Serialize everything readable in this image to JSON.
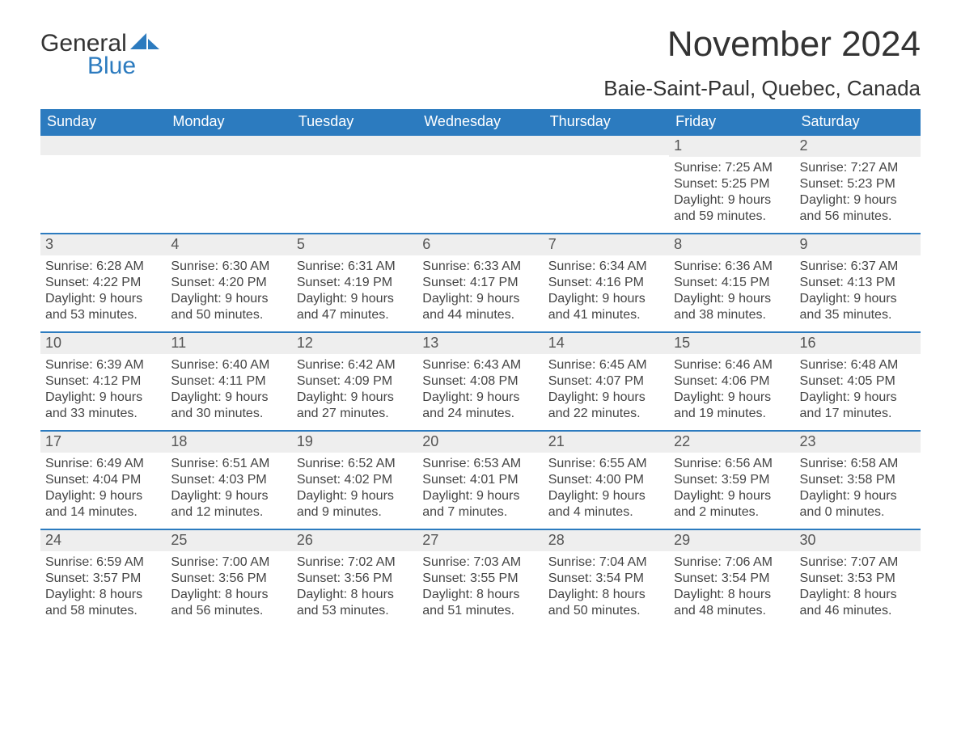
{
  "logo": {
    "text_general": "General",
    "text_blue": "Blue",
    "sail_color": "#2c7bbf"
  },
  "title": "November 2024",
  "location": "Baie-Saint-Paul, Quebec, Canada",
  "colors": {
    "header_bg": "#2c7bbf",
    "header_text": "#ffffff",
    "day_bar_bg": "#eeeeee",
    "day_bar_border": "#2c7bbf",
    "body_bg": "#ffffff",
    "text": "#333333"
  },
  "typography": {
    "title_fontsize": 44,
    "location_fontsize": 26,
    "weekday_fontsize": 18,
    "daynum_fontsize": 18,
    "body_fontsize": 16,
    "logo_fontsize": 30
  },
  "weekdays": [
    "Sunday",
    "Monday",
    "Tuesday",
    "Wednesday",
    "Thursday",
    "Friday",
    "Saturday"
  ],
  "weeks": [
    [
      {
        "empty": true
      },
      {
        "empty": true
      },
      {
        "empty": true
      },
      {
        "empty": true
      },
      {
        "empty": true
      },
      {
        "day": "1",
        "sunrise": "Sunrise: 7:25 AM",
        "sunset": "Sunset: 5:25 PM",
        "daylight1": "Daylight: 9 hours",
        "daylight2": "and 59 minutes."
      },
      {
        "day": "2",
        "sunrise": "Sunrise: 7:27 AM",
        "sunset": "Sunset: 5:23 PM",
        "daylight1": "Daylight: 9 hours",
        "daylight2": "and 56 minutes."
      }
    ],
    [
      {
        "day": "3",
        "sunrise": "Sunrise: 6:28 AM",
        "sunset": "Sunset: 4:22 PM",
        "daylight1": "Daylight: 9 hours",
        "daylight2": "and 53 minutes."
      },
      {
        "day": "4",
        "sunrise": "Sunrise: 6:30 AM",
        "sunset": "Sunset: 4:20 PM",
        "daylight1": "Daylight: 9 hours",
        "daylight2": "and 50 minutes."
      },
      {
        "day": "5",
        "sunrise": "Sunrise: 6:31 AM",
        "sunset": "Sunset: 4:19 PM",
        "daylight1": "Daylight: 9 hours",
        "daylight2": "and 47 minutes."
      },
      {
        "day": "6",
        "sunrise": "Sunrise: 6:33 AM",
        "sunset": "Sunset: 4:17 PM",
        "daylight1": "Daylight: 9 hours",
        "daylight2": "and 44 minutes."
      },
      {
        "day": "7",
        "sunrise": "Sunrise: 6:34 AM",
        "sunset": "Sunset: 4:16 PM",
        "daylight1": "Daylight: 9 hours",
        "daylight2": "and 41 minutes."
      },
      {
        "day": "8",
        "sunrise": "Sunrise: 6:36 AM",
        "sunset": "Sunset: 4:15 PM",
        "daylight1": "Daylight: 9 hours",
        "daylight2": "and 38 minutes."
      },
      {
        "day": "9",
        "sunrise": "Sunrise: 6:37 AM",
        "sunset": "Sunset: 4:13 PM",
        "daylight1": "Daylight: 9 hours",
        "daylight2": "and 35 minutes."
      }
    ],
    [
      {
        "day": "10",
        "sunrise": "Sunrise: 6:39 AM",
        "sunset": "Sunset: 4:12 PM",
        "daylight1": "Daylight: 9 hours",
        "daylight2": "and 33 minutes."
      },
      {
        "day": "11",
        "sunrise": "Sunrise: 6:40 AM",
        "sunset": "Sunset: 4:11 PM",
        "daylight1": "Daylight: 9 hours",
        "daylight2": "and 30 minutes."
      },
      {
        "day": "12",
        "sunrise": "Sunrise: 6:42 AM",
        "sunset": "Sunset: 4:09 PM",
        "daylight1": "Daylight: 9 hours",
        "daylight2": "and 27 minutes."
      },
      {
        "day": "13",
        "sunrise": "Sunrise: 6:43 AM",
        "sunset": "Sunset: 4:08 PM",
        "daylight1": "Daylight: 9 hours",
        "daylight2": "and 24 minutes."
      },
      {
        "day": "14",
        "sunrise": "Sunrise: 6:45 AM",
        "sunset": "Sunset: 4:07 PM",
        "daylight1": "Daylight: 9 hours",
        "daylight2": "and 22 minutes."
      },
      {
        "day": "15",
        "sunrise": "Sunrise: 6:46 AM",
        "sunset": "Sunset: 4:06 PM",
        "daylight1": "Daylight: 9 hours",
        "daylight2": "and 19 minutes."
      },
      {
        "day": "16",
        "sunrise": "Sunrise: 6:48 AM",
        "sunset": "Sunset: 4:05 PM",
        "daylight1": "Daylight: 9 hours",
        "daylight2": "and 17 minutes."
      }
    ],
    [
      {
        "day": "17",
        "sunrise": "Sunrise: 6:49 AM",
        "sunset": "Sunset: 4:04 PM",
        "daylight1": "Daylight: 9 hours",
        "daylight2": "and 14 minutes."
      },
      {
        "day": "18",
        "sunrise": "Sunrise: 6:51 AM",
        "sunset": "Sunset: 4:03 PM",
        "daylight1": "Daylight: 9 hours",
        "daylight2": "and 12 minutes."
      },
      {
        "day": "19",
        "sunrise": "Sunrise: 6:52 AM",
        "sunset": "Sunset: 4:02 PM",
        "daylight1": "Daylight: 9 hours",
        "daylight2": "and 9 minutes."
      },
      {
        "day": "20",
        "sunrise": "Sunrise: 6:53 AM",
        "sunset": "Sunset: 4:01 PM",
        "daylight1": "Daylight: 9 hours",
        "daylight2": "and 7 minutes."
      },
      {
        "day": "21",
        "sunrise": "Sunrise: 6:55 AM",
        "sunset": "Sunset: 4:00 PM",
        "daylight1": "Daylight: 9 hours",
        "daylight2": "and 4 minutes."
      },
      {
        "day": "22",
        "sunrise": "Sunrise: 6:56 AM",
        "sunset": "Sunset: 3:59 PM",
        "daylight1": "Daylight: 9 hours",
        "daylight2": "and 2 minutes."
      },
      {
        "day": "23",
        "sunrise": "Sunrise: 6:58 AM",
        "sunset": "Sunset: 3:58 PM",
        "daylight1": "Daylight: 9 hours",
        "daylight2": "and 0 minutes."
      }
    ],
    [
      {
        "day": "24",
        "sunrise": "Sunrise: 6:59 AM",
        "sunset": "Sunset: 3:57 PM",
        "daylight1": "Daylight: 8 hours",
        "daylight2": "and 58 minutes."
      },
      {
        "day": "25",
        "sunrise": "Sunrise: 7:00 AM",
        "sunset": "Sunset: 3:56 PM",
        "daylight1": "Daylight: 8 hours",
        "daylight2": "and 56 minutes."
      },
      {
        "day": "26",
        "sunrise": "Sunrise: 7:02 AM",
        "sunset": "Sunset: 3:56 PM",
        "daylight1": "Daylight: 8 hours",
        "daylight2": "and 53 minutes."
      },
      {
        "day": "27",
        "sunrise": "Sunrise: 7:03 AM",
        "sunset": "Sunset: 3:55 PM",
        "daylight1": "Daylight: 8 hours",
        "daylight2": "and 51 minutes."
      },
      {
        "day": "28",
        "sunrise": "Sunrise: 7:04 AM",
        "sunset": "Sunset: 3:54 PM",
        "daylight1": "Daylight: 8 hours",
        "daylight2": "and 50 minutes."
      },
      {
        "day": "29",
        "sunrise": "Sunrise: 7:06 AM",
        "sunset": "Sunset: 3:54 PM",
        "daylight1": "Daylight: 8 hours",
        "daylight2": "and 48 minutes."
      },
      {
        "day": "30",
        "sunrise": "Sunrise: 7:07 AM",
        "sunset": "Sunset: 3:53 PM",
        "daylight1": "Daylight: 8 hours",
        "daylight2": "and 46 minutes."
      }
    ]
  ]
}
